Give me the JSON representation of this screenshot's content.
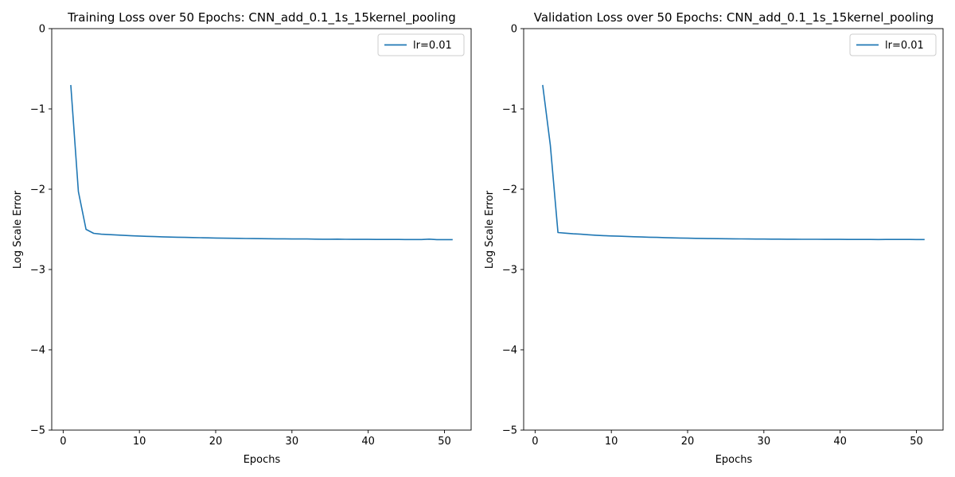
{
  "chart_data": [
    {
      "type": "line",
      "title": "Training Loss over 50 Epochs: CNN_add_0.1_1s_15kernel_pooling",
      "xlabel": "Epochs",
      "ylabel": "Log Scale Error",
      "xlim": [
        -1.5,
        53.5
      ],
      "ylim": [
        -5,
        0
      ],
      "xticks": [
        0,
        10,
        20,
        30,
        40,
        50
      ],
      "yticks": [
        -5,
        -4,
        -3,
        -2,
        -1,
        0
      ],
      "xtick_labels": [
        "0",
        "10",
        "20",
        "30",
        "40",
        "50"
      ],
      "ytick_labels": [
        "−5",
        "−4",
        "−3",
        "−2",
        "−1",
        "0"
      ],
      "grid": false,
      "legend_position": "top-right",
      "series": [
        {
          "name": "lr=0.01",
          "color": "#1f77b4",
          "x": [
            1,
            2,
            3,
            4,
            5,
            6,
            7,
            8,
            9,
            10,
            11,
            12,
            13,
            14,
            15,
            16,
            17,
            18,
            19,
            20,
            21,
            22,
            23,
            24,
            25,
            26,
            27,
            28,
            29,
            30,
            31,
            32,
            33,
            34,
            35,
            36,
            37,
            38,
            39,
            40,
            41,
            42,
            43,
            44,
            45,
            46,
            47,
            48,
            49,
            50,
            51
          ],
          "y": [
            -0.71,
            -2.03,
            -2.5,
            -2.55,
            -2.56,
            -2.565,
            -2.57,
            -2.575,
            -2.58,
            -2.583,
            -2.587,
            -2.59,
            -2.593,
            -2.596,
            -2.598,
            -2.6,
            -2.602,
            -2.604,
            -2.606,
            -2.608,
            -2.61,
            -2.611,
            -2.612,
            -2.614,
            -2.615,
            -2.616,
            -2.617,
            -2.618,
            -2.618,
            -2.62,
            -2.62,
            -2.62,
            -2.622,
            -2.623,
            -2.623,
            -2.622,
            -2.624,
            -2.625,
            -2.625,
            -2.625,
            -2.626,
            -2.626,
            -2.626,
            -2.626,
            -2.627,
            -2.627,
            -2.627,
            -2.622,
            -2.628,
            -2.628,
            -2.628
          ]
        }
      ]
    },
    {
      "type": "line",
      "title": "Validation Loss over 50 Epochs: CNN_add_0.1_1s_15kernel_pooling",
      "xlabel": "Epochs",
      "ylabel": "Log Scale Error",
      "xlim": [
        -1.5,
        53.5
      ],
      "ylim": [
        -5,
        0
      ],
      "xticks": [
        0,
        10,
        20,
        30,
        40,
        50
      ],
      "yticks": [
        -5,
        -4,
        -3,
        -2,
        -1,
        0
      ],
      "xtick_labels": [
        "0",
        "10",
        "20",
        "30",
        "40",
        "50"
      ],
      "ytick_labels": [
        "−5",
        "−4",
        "−3",
        "−2",
        "−1",
        "0"
      ],
      "grid": false,
      "legend_position": "top-right",
      "series": [
        {
          "name": "lr=0.01",
          "color": "#1f77b4",
          "x": [
            1,
            2,
            3,
            4,
            5,
            6,
            7,
            8,
            9,
            10,
            11,
            12,
            13,
            14,
            15,
            16,
            17,
            18,
            19,
            20,
            21,
            22,
            23,
            24,
            25,
            26,
            27,
            28,
            29,
            30,
            31,
            32,
            33,
            34,
            35,
            36,
            37,
            38,
            39,
            40,
            41,
            42,
            43,
            44,
            45,
            46,
            47,
            48,
            49,
            50,
            51
          ],
          "y": [
            -0.71,
            -1.45,
            -2.54,
            -2.548,
            -2.555,
            -2.56,
            -2.567,
            -2.573,
            -2.578,
            -2.582,
            -2.585,
            -2.588,
            -2.592,
            -2.595,
            -2.598,
            -2.6,
            -2.603,
            -2.606,
            -2.608,
            -2.61,
            -2.612,
            -2.613,
            -2.615,
            -2.616,
            -2.617,
            -2.618,
            -2.619,
            -2.62,
            -2.621,
            -2.621,
            -2.622,
            -2.622,
            -2.623,
            -2.623,
            -2.624,
            -2.624,
            -2.624,
            -2.625,
            -2.625,
            -2.625,
            -2.626,
            -2.626,
            -2.626,
            -2.626,
            -2.627,
            -2.626,
            -2.626,
            -2.626,
            -2.626,
            -2.627,
            -2.627
          ]
        }
      ]
    }
  ]
}
